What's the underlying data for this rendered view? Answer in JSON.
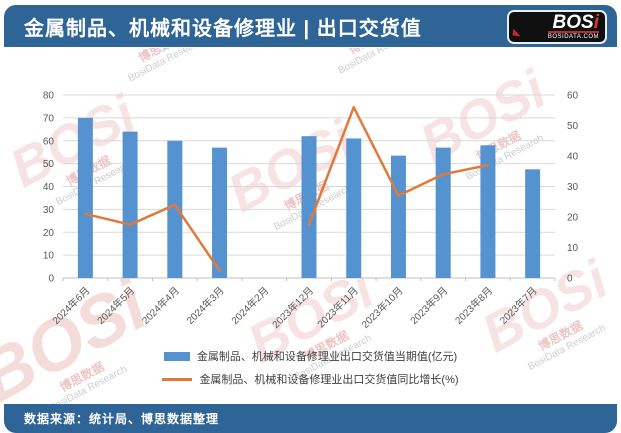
{
  "header": {
    "title": "金属制品、机械和设备修理业 | 出口交货值",
    "logo": {
      "brand_main": "BOS",
      "brand_accent": "i",
      "site": "BOSIDATA.COM"
    }
  },
  "footer": {
    "source": "数据来源：统计局、博思数据整理"
  },
  "watermark": {
    "brand": "BOSi",
    "cn": "博思数据",
    "en": "BosiData Research"
  },
  "colors": {
    "header_blue": "#2e6496",
    "bar_blue": "#5593d0",
    "line_orange": "#e2793a",
    "grid": "#d9d9d9",
    "axis_line": "#bfbfbf",
    "axis_text": "#595959"
  },
  "chart_data": {
    "type": "bar",
    "subtype": "combo-bar-line-dual-axis",
    "categories": [
      "2024年6月",
      "2024年5月",
      "2024年4月",
      "2024年3月",
      "2024年2月",
      "2023年12月",
      "2023年11月",
      "2023年10月",
      "2023年9月",
      "2023年8月",
      "2023年7月"
    ],
    "series": [
      {
        "name": "金属制品、机械和设备修理业出口交货值当期值(亿元)",
        "type": "bar",
        "axis": "left",
        "values": [
          70,
          64,
          60,
          57,
          null,
          62,
          61,
          53.5,
          57,
          58,
          47.5
        ]
      },
      {
        "name": "金属制品、机械和设备修理业出口交货值同比增长(%)",
        "type": "line",
        "axis": "right",
        "values": [
          21,
          17.5,
          24,
          2.4,
          null,
          17.5,
          56,
          27,
          34,
          37,
          null
        ]
      }
    ],
    "left_axis": {
      "min": 0,
      "max": 80,
      "step": 10
    },
    "right_axis": {
      "min": 0,
      "max": 60,
      "step": 10
    },
    "grid": true,
    "legend_position": "bottom"
  }
}
